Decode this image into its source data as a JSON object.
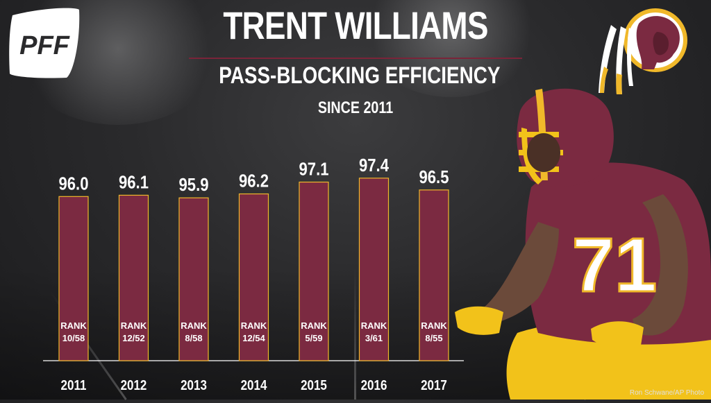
{
  "header": {
    "title": "TRENT WILLIAMS",
    "subtitle": "PASS-BLOCKING EFFICIENCY",
    "since": "SINCE 2011",
    "brand": "PFF"
  },
  "photo_credit": "Ron Schwane/AP Photo",
  "colors": {
    "bar_fill": "#7b2a41",
    "bar_outline": "#f0b82a",
    "rule": "#7a2439",
    "background": "#2a2a2c"
  },
  "icons": [
    "pff-logo",
    "redskins-logo",
    "player-photo"
  ],
  "chart_data": {
    "type": "bar",
    "title": "PASS-BLOCKING EFFICIENCY",
    "subtitle": "SINCE 2011",
    "categories": [
      "2011",
      "2012",
      "2013",
      "2014",
      "2015",
      "2016",
      "2017"
    ],
    "values": [
      96.0,
      96.1,
      95.9,
      96.2,
      97.1,
      97.4,
      96.5
    ],
    "value_labels": [
      "96.0",
      "96.1",
      "95.9",
      "96.2",
      "97.1",
      "97.4",
      "96.5"
    ],
    "rank_prefix": "RANK",
    "ranks": [
      "10/58",
      "12/52",
      "8/58",
      "12/54",
      "5/59",
      "3/61",
      "8/55"
    ],
    "ylim": [
      83.5,
      98.5
    ],
    "grid": false,
    "legend": "none"
  }
}
